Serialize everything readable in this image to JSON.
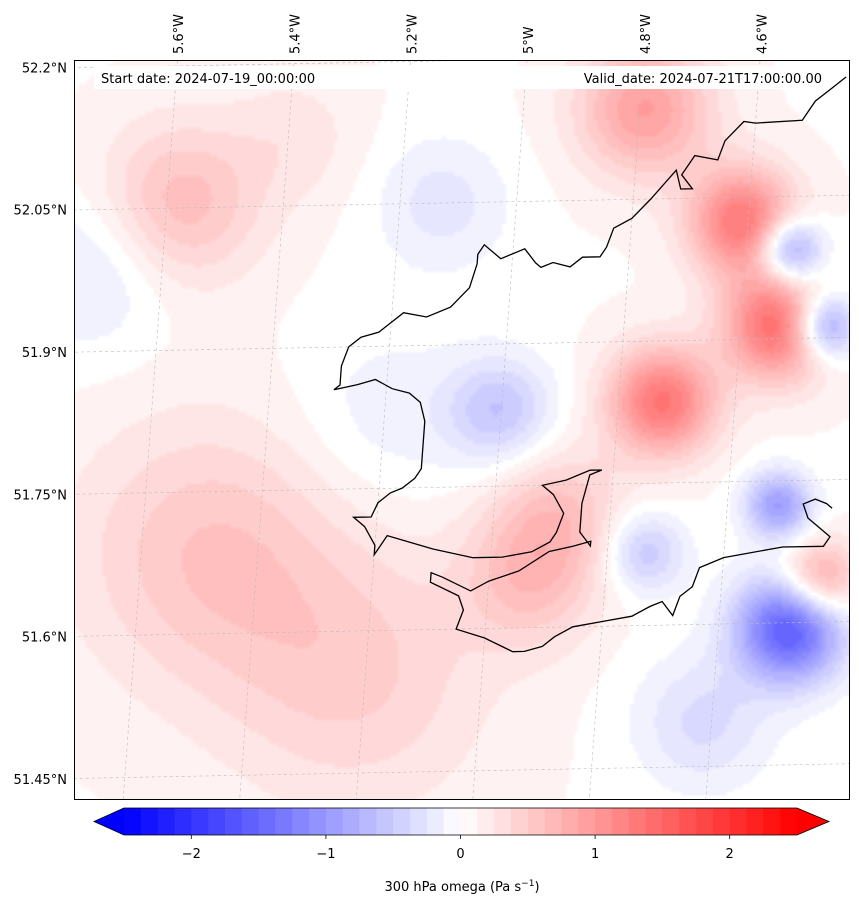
{
  "map": {
    "start_label": "Start date: 2024-07-19_00:00:00",
    "valid_label": "Valid_date: 2024-07-21T17:00:00.00",
    "lon_ticks": [
      "5.6°W",
      "5.4°W",
      "5.2°W",
      "5°W",
      "4.8°W",
      "4.6°W"
    ],
    "lat_ticks": [
      "52.2°N",
      "52.05°N",
      "51.9°N",
      "51.75°N",
      "51.6°N",
      "51.45°N"
    ],
    "coastline_color": "#000000",
    "gridline_color": "#bbbbbb"
  },
  "field": {
    "variable_units": "Pa s-1",
    "features": [
      {
        "lon": -5.55,
        "lat": 52.05,
        "value": 0.6,
        "spread": 0.06
      },
      {
        "lon": -5.35,
        "lat": 52.12,
        "value": 0.2,
        "spread": 0.05
      },
      {
        "lon": -5.1,
        "lat": 52.05,
        "value": -0.3,
        "spread": 0.05
      },
      {
        "lon": -5.7,
        "lat": 51.98,
        "value": -0.3,
        "spread": 0.06
      },
      {
        "lon": -5.2,
        "lat": 51.82,
        "value": -0.2,
        "spread": 0.07
      },
      {
        "lon": -5.0,
        "lat": 51.83,
        "value": -0.6,
        "spread": 0.04
      },
      {
        "lon": -4.9,
        "lat": 51.72,
        "value": 0.5,
        "spread": 0.05
      },
      {
        "lon": -5.5,
        "lat": 51.68,
        "value": 0.5,
        "spread": 0.1
      },
      {
        "lon": -5.25,
        "lat": 51.55,
        "value": 0.4,
        "spread": 0.1
      },
      {
        "lon": -4.75,
        "lat": 52.15,
        "value": 0.9,
        "spread": 0.05
      },
      {
        "lon": -4.58,
        "lat": 52.03,
        "value": 1.3,
        "spread": 0.04
      },
      {
        "lon": -4.52,
        "lat": 51.92,
        "value": 1.4,
        "spread": 0.04
      },
      {
        "lon": -4.72,
        "lat": 51.84,
        "value": 1.3,
        "spread": 0.04
      },
      {
        "lon": -4.5,
        "lat": 52.0,
        "value": -1.2,
        "spread": 0.025
      },
      {
        "lon": -4.44,
        "lat": 51.92,
        "value": -1.2,
        "spread": 0.025
      },
      {
        "lon": -4.52,
        "lat": 51.73,
        "value": -1.0,
        "spread": 0.025
      },
      {
        "lon": -4.5,
        "lat": 51.6,
        "value": -1.7,
        "spread": 0.04
      },
      {
        "lon": -4.75,
        "lat": 51.68,
        "value": -0.6,
        "spread": 0.03
      },
      {
        "lon": -4.45,
        "lat": 51.65,
        "value": 1.0,
        "spread": 0.03
      },
      {
        "lon": -4.65,
        "lat": 51.5,
        "value": -0.4,
        "spread": 0.05
      },
      {
        "lon": -4.95,
        "lat": 51.65,
        "value": 0.5,
        "spread": 0.05
      }
    ]
  },
  "colorbar": {
    "label": "300 hPa omega (Pa s",
    "label_sup": "−1",
    "label_close": ")",
    "ticks": [
      "−2",
      "−1",
      "0",
      "1",
      "2"
    ],
    "vmin": -2.5,
    "vmax": 2.5,
    "levels": 40,
    "min_color": "#0000ff",
    "mid_color": "#ffffff",
    "max_color": "#ff0000"
  },
  "coastline": [
    [
      -4.45,
      52.175
    ],
    [
      -4.47,
      52.165
    ],
    [
      -4.5,
      52.15
    ],
    [
      -4.52,
      52.13
    ],
    [
      -4.6,
      52.128
    ],
    [
      -4.62,
      52.13
    ],
    [
      -4.65,
      52.11
    ],
    [
      -4.66,
      52.09
    ],
    [
      -4.7,
      52.095
    ],
    [
      -4.72,
      52.075
    ],
    [
      -4.7,
      52.06
    ],
    [
      -4.72,
      52.06
    ],
    [
      -4.73,
      52.08
    ],
    [
      -4.77,
      52.05
    ],
    [
      -4.8,
      52.03
    ],
    [
      -4.83,
      52.02
    ],
    [
      -4.84,
      52.0
    ],
    [
      -4.85,
      51.99
    ],
    [
      -4.88,
      51.99
    ],
    [
      -4.9,
      51.98
    ],
    [
      -4.93,
      51.985
    ],
    [
      -4.95,
      51.98
    ],
    [
      -4.96,
      51.985
    ],
    [
      -4.98,
      52.0
    ],
    [
      -5.02,
      51.99
    ],
    [
      -5.05,
      52.005
    ],
    [
      -5.06,
      51.995
    ],
    [
      -5.06,
      51.985
    ],
    [
      -5.07,
      51.96
    ],
    [
      -5.1,
      51.94
    ],
    [
      -5.14,
      51.93
    ],
    [
      -5.18,
      51.935
    ],
    [
      -5.22,
      51.915
    ],
    [
      -5.25,
      51.91
    ],
    [
      -5.27,
      51.9
    ],
    [
      -5.28,
      51.88
    ],
    [
      -5.28,
      51.86
    ],
    [
      -5.29,
      51.855
    ],
    [
      -5.25,
      51.86
    ],
    [
      -5.22,
      51.865
    ],
    [
      -5.19,
      51.855
    ],
    [
      -5.16,
      51.85
    ],
    [
      -5.14,
      51.84
    ],
    [
      -5.13,
      51.82
    ],
    [
      -5.13,
      51.77
    ],
    [
      -5.14,
      51.76
    ],
    [
      -5.16,
      51.75
    ],
    [
      -5.18,
      51.745
    ],
    [
      -5.2,
      51.735
    ],
    [
      -5.21,
      51.72
    ],
    [
      -5.24,
      51.72
    ],
    [
      -5.22,
      51.71
    ],
    [
      -5.2,
      51.69
    ],
    [
      -5.2,
      51.68
    ],
    [
      -5.19,
      51.69
    ],
    [
      -5.18,
      51.7
    ],
    [
      -5.1,
      51.685
    ],
    [
      -5.03,
      51.675
    ],
    [
      -4.98,
      51.675
    ],
    [
      -4.93,
      51.68
    ],
    [
      -4.9,
      51.69
    ],
    [
      -4.89,
      51.7
    ],
    [
      -4.88,
      51.72
    ],
    [
      -4.9,
      51.74
    ],
    [
      -4.92,
      51.75
    ],
    [
      -4.88,
      51.755
    ],
    [
      -4.84,
      51.765
    ],
    [
      -4.82,
      51.765
    ],
    [
      -4.84,
      51.76
    ],
    [
      -4.85,
      51.73
    ],
    [
      -4.85,
      51.7
    ],
    [
      -4.83,
      51.685
    ],
    [
      -4.83,
      51.69
    ],
    [
      -4.86,
      51.685
    ],
    [
      -4.9,
      51.68
    ],
    [
      -4.95,
      51.66
    ],
    [
      -5.0,
      51.65
    ],
    [
      -5.03,
      51.64
    ],
    [
      -5.08,
      51.655
    ],
    [
      -5.1,
      51.66
    ],
    [
      -5.1,
      51.65
    ],
    [
      -5.05,
      51.635
    ],
    [
      -5.04,
      51.62
    ],
    [
      -5.05,
      51.6
    ],
    [
      -5.0,
      51.59
    ],
    [
      -4.95,
      51.575
    ],
    [
      -4.93,
      51.575
    ],
    [
      -4.9,
      51.58
    ],
    [
      -4.88,
      51.59
    ],
    [
      -4.85,
      51.6
    ],
    [
      -4.8,
      51.605
    ],
    [
      -4.75,
      51.61
    ],
    [
      -4.72,
      51.62
    ],
    [
      -4.7,
      51.625
    ],
    [
      -4.68,
      51.61
    ],
    [
      -4.67,
      51.63
    ],
    [
      -4.65,
      51.64
    ],
    [
      -4.64,
      51.66
    ],
    [
      -4.6,
      51.67
    ],
    [
      -4.5,
      51.68
    ],
    [
      -4.43,
      51.68
    ],
    [
      -4.42,
      51.69
    ],
    [
      -4.44,
      51.7
    ],
    [
      -4.46,
      51.71
    ],
    [
      -4.47,
      51.725
    ],
    [
      -4.45,
      51.73
    ],
    [
      -4.43,
      51.725
    ],
    [
      -4.42,
      51.72
    ]
  ]
}
